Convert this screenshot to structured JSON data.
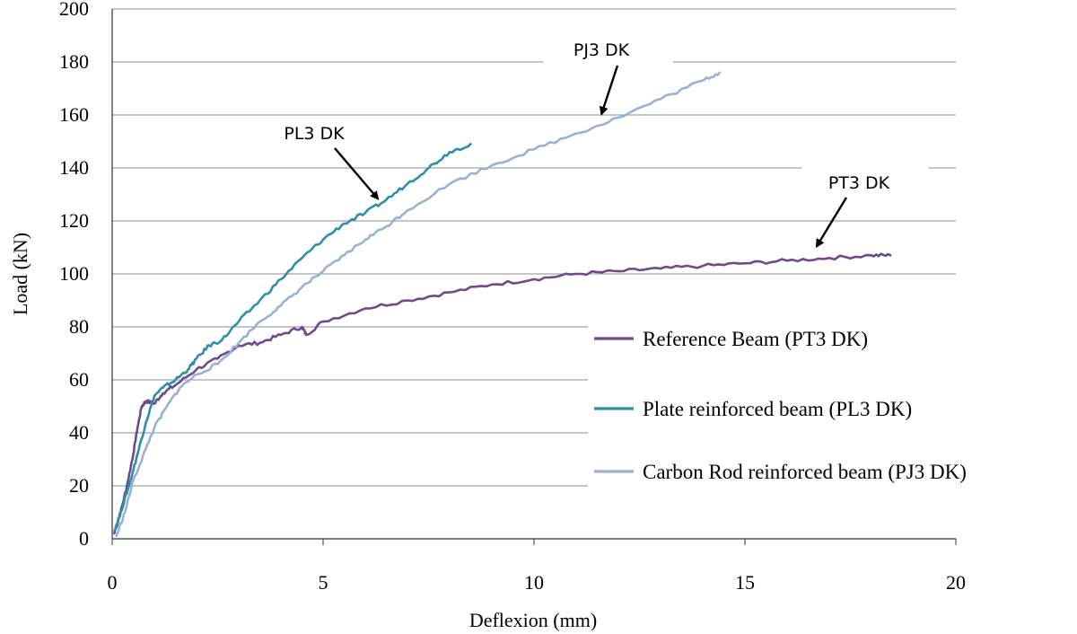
{
  "chart_data": {
    "type": "line",
    "title": "",
    "xlabel": "Deflexion (mm)",
    "ylabel": "Load (kN)",
    "xlim": [
      0,
      20
    ],
    "ylim": [
      0,
      200
    ],
    "x_ticks": [
      "0",
      "5",
      "10",
      "15",
      "20"
    ],
    "y_ticks": [
      "0",
      "20",
      "40",
      "60",
      "80",
      "100",
      "120",
      "140",
      "160",
      "180",
      "200"
    ],
    "grid": "horizontal",
    "legend_position": "right",
    "series": [
      {
        "name": "Reference Beam (PT3 DK)",
        "color": "#6b4c8c",
        "points": [
          [
            0.05,
            2
          ],
          [
            0.2,
            10
          ],
          [
            0.35,
            20
          ],
          [
            0.5,
            32
          ],
          [
            0.6,
            42
          ],
          [
            0.7,
            50
          ],
          [
            0.8,
            52
          ],
          [
            1.0,
            51
          ],
          [
            1.2,
            55
          ],
          [
            1.5,
            58
          ],
          [
            2.0,
            64
          ],
          [
            2.5,
            68
          ],
          [
            3.0,
            73
          ],
          [
            3.5,
            74
          ],
          [
            4.0,
            77
          ],
          [
            4.5,
            80
          ],
          [
            4.6,
            77
          ],
          [
            5.0,
            82
          ],
          [
            6.0,
            87
          ],
          [
            7.0,
            90
          ],
          [
            8.0,
            93
          ],
          [
            9.0,
            96
          ],
          [
            10.0,
            98
          ],
          [
            11.0,
            100
          ],
          [
            12.0,
            101
          ],
          [
            13.0,
            102
          ],
          [
            14.0,
            103
          ],
          [
            15.0,
            104
          ],
          [
            16.0,
            105
          ],
          [
            17.0,
            106
          ],
          [
            18.0,
            107
          ],
          [
            18.45,
            107
          ]
        ]
      },
      {
        "name": "Plate reinforced beam (PL3 DK)",
        "color": "#2e8fa8",
        "points": [
          [
            0.05,
            3
          ],
          [
            0.2,
            10
          ],
          [
            0.4,
            20
          ],
          [
            0.6,
            32
          ],
          [
            0.8,
            44
          ],
          [
            1.0,
            54
          ],
          [
            1.2,
            57
          ],
          [
            1.5,
            60
          ],
          [
            1.8,
            64
          ],
          [
            2.0,
            68
          ],
          [
            2.3,
            73
          ],
          [
            2.6,
            75
          ],
          [
            3.0,
            82
          ],
          [
            3.5,
            90
          ],
          [
            4.0,
            98
          ],
          [
            4.5,
            106
          ],
          [
            5.0,
            113
          ],
          [
            5.5,
            119
          ],
          [
            6.0,
            123
          ],
          [
            6.5,
            128
          ],
          [
            7.0,
            134
          ],
          [
            7.5,
            140
          ],
          [
            8.0,
            146
          ],
          [
            8.5,
            149
          ]
        ]
      },
      {
        "name": "Carbon Rod reinforced beam (PJ3 DK)",
        "color": "#9bb1d4",
        "points": [
          [
            0.1,
            1
          ],
          [
            0.3,
            10
          ],
          [
            0.5,
            22
          ],
          [
            0.8,
            34
          ],
          [
            1.0,
            42
          ],
          [
            1.3,
            50
          ],
          [
            1.6,
            57
          ],
          [
            2.0,
            62
          ],
          [
            2.5,
            66
          ],
          [
            3.0,
            74
          ],
          [
            3.5,
            82
          ],
          [
            4.0,
            88
          ],
          [
            4.5,
            95
          ],
          [
            5.0,
            101
          ],
          [
            5.5,
            107
          ],
          [
            6.0,
            113
          ],
          [
            6.5,
            118
          ],
          [
            7.0,
            124
          ],
          [
            8.0,
            134
          ],
          [
            9.0,
            141
          ],
          [
            10.0,
            147
          ],
          [
            11.0,
            153
          ],
          [
            12.0,
            159
          ],
          [
            13.0,
            166
          ],
          [
            14.0,
            173
          ],
          [
            14.4,
            176
          ]
        ]
      }
    ],
    "annotations": [
      {
        "text": "PL3 DK",
        "target": [
          6.3,
          127
        ]
      },
      {
        "text": "PJ3 DK",
        "target": [
          11.6,
          159
        ]
      },
      {
        "text": "PT3 DK",
        "target": [
          16.7,
          109
        ]
      }
    ]
  }
}
